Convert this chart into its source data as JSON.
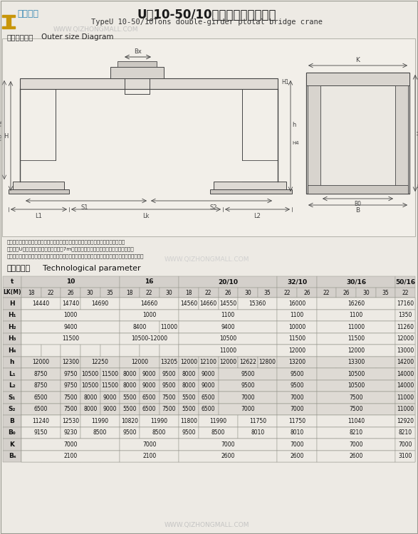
{
  "title_cn": "U型10-50/10吟双主棁门式起重机",
  "title_en": "TypeU 10-50/10Tons double-girder ptotal bridge crane",
  "subtitle_cn": "外形尺寸图：",
  "subtitle_en": "Outer size Diagram",
  "watermark": "WWW.QIZHONGMALL.COM",
  "tech_label_cn": "技术参数：",
  "tech_label_en": "Technological parameter",
  "bg_color": "#edeae4",
  "table_hdr_bg": "#d4d0cb",
  "table_shaded_bg": "#dedad4",
  "table_light_bg": "#edeae4",
  "table_border": "#999990",
  "draw_color": "#444444",
  "col_groups": [
    {
      "label": "t",
      "span": 1
    },
    {
      "label": "10",
      "span": 5
    },
    {
      "label": "16",
      "span": 3
    },
    {
      "label": "20/10",
      "span": 5
    },
    {
      "label": "32/10",
      "span": 2
    },
    {
      "label": "30/16",
      "span": 4
    },
    {
      "label": "50/16",
      "span": 1
    }
  ],
  "lk_vals": [
    "18",
    "22",
    "26",
    "30",
    "35",
    "18",
    "22",
    "30",
    "18",
    "22",
    "26",
    "30",
    "35",
    "22",
    "26",
    "22",
    "26",
    "30",
    "35",
    "22"
  ],
  "rows": [
    {
      "label": "H",
      "merged": [
        {
          "cols": [
            0,
            1
          ],
          "val": "14440"
        },
        {
          "cols": [
            2,
            2
          ],
          "val": "14740"
        },
        {
          "cols": [
            3,
            4
          ],
          "val": "14690"
        },
        {
          "cols": [
            5,
            6,
            7
          ],
          "val": "14660"
        },
        {
          "cols": [
            8,
            8
          ],
          "val": "14560"
        },
        {
          "cols": [
            9,
            9
          ],
          "val": "14660"
        },
        {
          "cols": [
            10,
            10
          ],
          "val": "14550"
        },
        {
          "cols": [
            11,
            12
          ],
          "val": "15360"
        },
        {
          "cols": [
            13,
            14
          ],
          "val": "16000"
        },
        {
          "cols": [
            15,
            18
          ],
          "val": "16260"
        },
        {
          "cols": [
            19,
            19
          ],
          "val": "17160"
        }
      ]
    },
    {
      "label": "H₁",
      "merged": [
        {
          "cols": [
            0,
            4
          ],
          "val": "1000"
        },
        {
          "cols": [
            5,
            7
          ],
          "val": "1000"
        },
        {
          "cols": [
            8,
            12
          ],
          "val": "1100"
        },
        {
          "cols": [
            13,
            14
          ],
          "val": "1100"
        },
        {
          "cols": [
            15,
            18
          ],
          "val": "1100"
        },
        {
          "cols": [
            19,
            19
          ],
          "val": "1350"
        }
      ]
    },
    {
      "label": "H₂",
      "merged": [
        {
          "cols": [
            0,
            4
          ],
          "val": "9400"
        },
        {
          "cols": [
            5,
            6
          ],
          "val": "8400"
        },
        {
          "cols": [
            7,
            7
          ],
          "val": "11000"
        },
        {
          "cols": [
            8,
            12
          ],
          "val": "9400"
        },
        {
          "cols": [
            13,
            14
          ],
          "val": "10000"
        },
        {
          "cols": [
            15,
            18
          ],
          "val": "11000"
        },
        {
          "cols": [
            19,
            19
          ],
          "val": "11260"
        }
      ]
    },
    {
      "label": "H₃",
      "merged": [
        {
          "cols": [
            0,
            4
          ],
          "val": "11500"
        },
        {
          "cols": [
            5,
            7
          ],
          "val": "10500-12000"
        },
        {
          "cols": [
            8,
            12
          ],
          "val": "10500"
        },
        {
          "cols": [
            13,
            14
          ],
          "val": "11500"
        },
        {
          "cols": [
            15,
            18
          ],
          "val": "11500"
        },
        {
          "cols": [
            19,
            19
          ],
          "val": "12000"
        }
      ]
    },
    {
      "label": "H₄",
      "merged": [
        {
          "cols": [
            8,
            12
          ],
          "val": "11000"
        },
        {
          "cols": [
            13,
            14
          ],
          "val": "12000"
        },
        {
          "cols": [
            15,
            18
          ],
          "val": "12000"
        },
        {
          "cols": [
            19,
            19
          ],
          "val": "13000"
        }
      ]
    },
    {
      "label": "h",
      "merged": [
        {
          "cols": [
            0,
            1
          ],
          "val": "12000"
        },
        {
          "cols": [
            2,
            2
          ],
          "val": "12300"
        },
        {
          "cols": [
            3,
            4
          ],
          "val": "12250"
        },
        {
          "cols": [
            5,
            6
          ],
          "val": "12000"
        },
        {
          "cols": [
            7,
            7
          ],
          "val": "13205"
        },
        {
          "cols": [
            8,
            8
          ],
          "val": "12000"
        },
        {
          "cols": [
            9,
            9
          ],
          "val": "12100"
        },
        {
          "cols": [
            10,
            10
          ],
          "val": "12000"
        },
        {
          "cols": [
            11,
            11
          ],
          "val": "12622"
        },
        {
          "cols": [
            12,
            12
          ],
          "val": "12800"
        },
        {
          "cols": [
            13,
            14
          ],
          "val": "13200"
        },
        {
          "cols": [
            15,
            18
          ],
          "val": "13300"
        },
        {
          "cols": [
            19,
            19
          ],
          "val": "14200"
        }
      ]
    },
    {
      "label": "L₁",
      "merged": [
        {
          "cols": [
            0,
            1
          ],
          "val": "8750"
        },
        {
          "cols": [
            2,
            2
          ],
          "val": "9750"
        },
        {
          "cols": [
            3,
            3
          ],
          "val": "10500"
        },
        {
          "cols": [
            4,
            4
          ],
          "val": "11500"
        },
        {
          "cols": [
            5,
            5
          ],
          "val": "8000"
        },
        {
          "cols": [
            6,
            6
          ],
          "val": "9000"
        },
        {
          "cols": [
            7,
            7
          ],
          "val": "9500"
        },
        {
          "cols": [
            8,
            8
          ],
          "val": "8000"
        },
        {
          "cols": [
            9,
            9
          ],
          "val": "9000"
        },
        {
          "cols": [
            10,
            12
          ],
          "val": "9500"
        },
        {
          "cols": [
            13,
            14
          ],
          "val": "9500"
        },
        {
          "cols": [
            15,
            18
          ],
          "val": "10500"
        },
        {
          "cols": [
            19,
            19
          ],
          "val": "14000"
        }
      ]
    },
    {
      "label": "L₂",
      "merged": [
        {
          "cols": [
            0,
            1
          ],
          "val": "8750"
        },
        {
          "cols": [
            2,
            2
          ],
          "val": "9750"
        },
        {
          "cols": [
            3,
            3
          ],
          "val": "10500"
        },
        {
          "cols": [
            4,
            4
          ],
          "val": "11500"
        },
        {
          "cols": [
            5,
            5
          ],
          "val": "8000"
        },
        {
          "cols": [
            6,
            6
          ],
          "val": "9000"
        },
        {
          "cols": [
            7,
            7
          ],
          "val": "9500"
        },
        {
          "cols": [
            8,
            8
          ],
          "val": "8000"
        },
        {
          "cols": [
            9,
            9
          ],
          "val": "9000"
        },
        {
          "cols": [
            10,
            12
          ],
          "val": "9500"
        },
        {
          "cols": [
            13,
            14
          ],
          "val": "9500"
        },
        {
          "cols": [
            15,
            18
          ],
          "val": "10500"
        },
        {
          "cols": [
            19,
            19
          ],
          "val": "14000"
        }
      ]
    },
    {
      "label": "S₁",
      "merged": [
        {
          "cols": [
            0,
            1
          ],
          "val": "6500"
        },
        {
          "cols": [
            2,
            2
          ],
          "val": "7500"
        },
        {
          "cols": [
            3,
            3
          ],
          "val": "8000"
        },
        {
          "cols": [
            4,
            4
          ],
          "val": "9000"
        },
        {
          "cols": [
            5,
            5
          ],
          "val": "5500"
        },
        {
          "cols": [
            6,
            6
          ],
          "val": "6500"
        },
        {
          "cols": [
            7,
            7
          ],
          "val": "7500"
        },
        {
          "cols": [
            8,
            8
          ],
          "val": "5500"
        },
        {
          "cols": [
            9,
            9
          ],
          "val": "6500"
        },
        {
          "cols": [
            10,
            12
          ],
          "val": "7000"
        },
        {
          "cols": [
            13,
            14
          ],
          "val": "7000"
        },
        {
          "cols": [
            15,
            18
          ],
          "val": "7500"
        },
        {
          "cols": [
            19,
            19
          ],
          "val": "11000"
        }
      ]
    },
    {
      "label": "S₂",
      "merged": [
        {
          "cols": [
            0,
            1
          ],
          "val": "6500"
        },
        {
          "cols": [
            2,
            2
          ],
          "val": "7500"
        },
        {
          "cols": [
            3,
            3
          ],
          "val": "8000"
        },
        {
          "cols": [
            4,
            4
          ],
          "val": "9000"
        },
        {
          "cols": [
            5,
            5
          ],
          "val": "5500"
        },
        {
          "cols": [
            6,
            6
          ],
          "val": "6500"
        },
        {
          "cols": [
            7,
            7
          ],
          "val": "7500"
        },
        {
          "cols": [
            8,
            8
          ],
          "val": "5500"
        },
        {
          "cols": [
            9,
            9
          ],
          "val": "6500"
        },
        {
          "cols": [
            10,
            12
          ],
          "val": "7000"
        },
        {
          "cols": [
            13,
            14
          ],
          "val": "7000"
        },
        {
          "cols": [
            15,
            18
          ],
          "val": "7500"
        },
        {
          "cols": [
            19,
            19
          ],
          "val": "11000"
        }
      ]
    },
    {
      "label": "B",
      "merged": [
        {
          "cols": [
            0,
            1
          ],
          "val": "11240"
        },
        {
          "cols": [
            2,
            2
          ],
          "val": "12530"
        },
        {
          "cols": [
            3,
            4
          ],
          "val": "11990"
        },
        {
          "cols": [
            5,
            5
          ],
          "val": "10820"
        },
        {
          "cols": [
            6,
            7
          ],
          "val": "11990"
        },
        {
          "cols": [
            8,
            8
          ],
          "val": "11800"
        },
        {
          "cols": [
            9,
            10
          ],
          "val": "11990"
        },
        {
          "cols": [
            11,
            12
          ],
          "val": "11750"
        },
        {
          "cols": [
            13,
            14
          ],
          "val": "11750"
        },
        {
          "cols": [
            15,
            18
          ],
          "val": "11040"
        },
        {
          "cols": [
            19,
            19
          ],
          "val": "12920"
        }
      ]
    },
    {
      "label": "B₀",
      "merged": [
        {
          "cols": [
            0,
            1
          ],
          "val": "9150"
        },
        {
          "cols": [
            2,
            2
          ],
          "val": "9230"
        },
        {
          "cols": [
            3,
            4
          ],
          "val": "8500"
        },
        {
          "cols": [
            5,
            5
          ],
          "val": "9500"
        },
        {
          "cols": [
            6,
            7
          ],
          "val": "8500"
        },
        {
          "cols": [
            8,
            8
          ],
          "val": "9500"
        },
        {
          "cols": [
            9,
            10
          ],
          "val": "8500"
        },
        {
          "cols": [
            11,
            12
          ],
          "val": "8010"
        },
        {
          "cols": [
            13,
            14
          ],
          "val": "8010"
        },
        {
          "cols": [
            15,
            18
          ],
          "val": "8210"
        },
        {
          "cols": [
            19,
            19
          ],
          "val": "8210"
        }
      ]
    },
    {
      "label": "K",
      "merged": [
        {
          "cols": [
            0,
            4
          ],
          "val": "7000"
        },
        {
          "cols": [
            5,
            7
          ],
          "val": "7000"
        },
        {
          "cols": [
            8,
            12
          ],
          "val": "7000"
        },
        {
          "cols": [
            13,
            14
          ],
          "val": "7000"
        },
        {
          "cols": [
            15,
            18
          ],
          "val": "7000"
        },
        {
          "cols": [
            19,
            19
          ],
          "val": "7000"
        }
      ]
    },
    {
      "label": "Bₓ",
      "merged": [
        {
          "cols": [
            0,
            4
          ],
          "val": "2100"
        },
        {
          "cols": [
            5,
            7
          ],
          "val": "2100"
        },
        {
          "cols": [
            8,
            12
          ],
          "val": "2600"
        },
        {
          "cols": [
            13,
            14
          ],
          "val": "2600"
        },
        {
          "cols": [
            15,
            18
          ],
          "val": "2600"
        },
        {
          "cols": [
            19,
            19
          ],
          "val": "3100"
        }
      ]
    }
  ],
  "shaded_rows": [
    5,
    6,
    7,
    8,
    9
  ]
}
